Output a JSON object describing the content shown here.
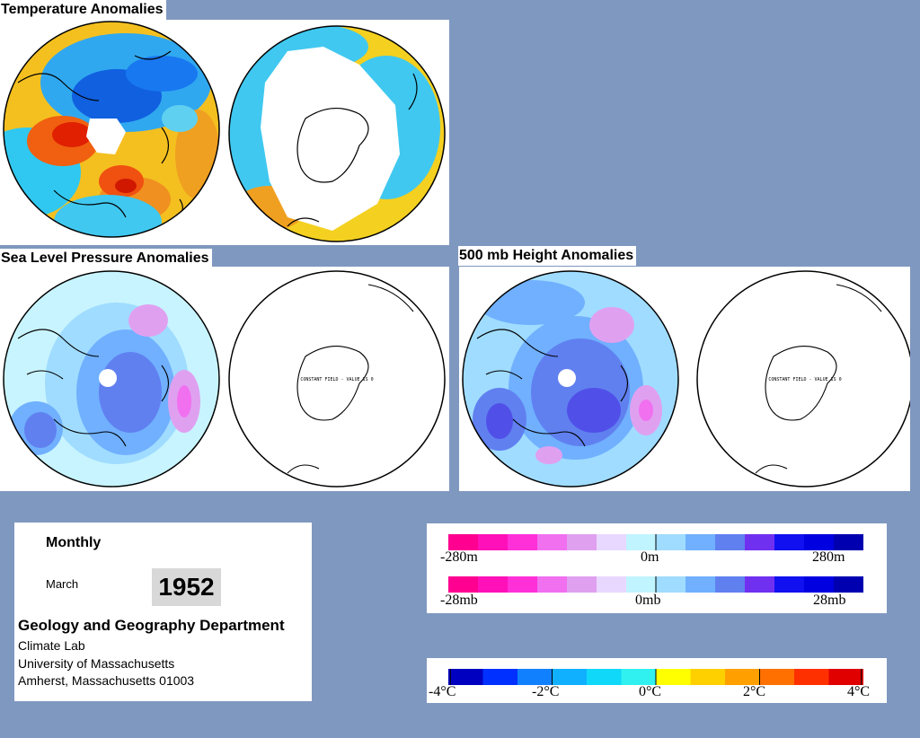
{
  "panels": {
    "temperature": {
      "title": "Temperature Anomalies"
    },
    "slp": {
      "title": "Sea Level Pressure Anomalies",
      "constant_label": "CONSTANT FIELD - VALUE IS 0"
    },
    "height500": {
      "title": "500 mb Height Anomalies",
      "constant_label": "CONSTANT FIELD - VALUE IS 0"
    }
  },
  "info": {
    "period": "Monthly",
    "month": "March",
    "year": "1952",
    "department": "Geology and Geography Department",
    "lab": "Climate Lab",
    "university": "University of Massachusetts",
    "address": "Amherst, Massachusetts 01003"
  },
  "legends": {
    "height": {
      "labels": [
        "-280m",
        "0m",
        "280m"
      ]
    },
    "pressure": {
      "labels": [
        "-28mb",
        "0mb",
        "28mb"
      ]
    },
    "temperature": {
      "labels": [
        "-4°C",
        "-2°C",
        "0°C",
        "2°C",
        "4°C"
      ]
    },
    "anomaly_colors": [
      "#ff0090",
      "#ff10b8",
      "#ff30d8",
      "#f070f0",
      "#e0a0f0",
      "#e8d8ff",
      "#c0f4ff",
      "#a0dcff",
      "#70b0ff",
      "#6080f0",
      "#7030f0",
      "#1010f0",
      "#0000e0",
      "#0000b0"
    ],
    "temperature_colors": [
      "#0000c0",
      "#0030ff",
      "#1080ff",
      "#10b0ff",
      "#10d8f8",
      "#30f0f0",
      "#ffff00",
      "#ffd000",
      "#ffa000",
      "#ff7000",
      "#ff3000",
      "#e00000"
    ]
  }
}
